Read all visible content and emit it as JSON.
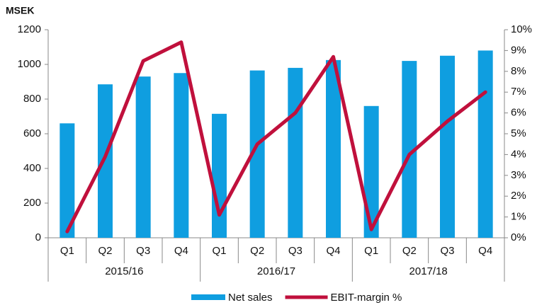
{
  "chart_data": {
    "type": "bar_line",
    "y_label": "MSEK",
    "categories": [
      "Q1",
      "Q2",
      "Q3",
      "Q4",
      "Q1",
      "Q2",
      "Q3",
      "Q4",
      "Q1",
      "Q2",
      "Q3",
      "Q4"
    ],
    "groups": [
      "2015/16",
      "2016/17",
      "2017/18"
    ],
    "series": [
      {
        "name": "Net sales",
        "type": "bar",
        "color": "#0f9ee0",
        "values": [
          660,
          885,
          930,
          950,
          715,
          965,
          980,
          1025,
          760,
          1020,
          1050,
          1080
        ]
      },
      {
        "name": "EBIT-margin %",
        "type": "line",
        "axis": "y2",
        "color": "#c0103c",
        "values": [
          0.3,
          3.9,
          8.5,
          9.4,
          1.1,
          4.5,
          6.0,
          8.7,
          0.4,
          4.0,
          5.6,
          7.0
        ]
      }
    ],
    "ylim": [
      0,
      1200
    ],
    "yticks": [
      0,
      200,
      400,
      600,
      800,
      1000,
      1200
    ],
    "y2lim": [
      0,
      10
    ],
    "y2ticks": [
      {
        "value": 0,
        "label": "0%"
      },
      {
        "value": 1,
        "label": "1%"
      },
      {
        "value": 2,
        "label": "2%"
      },
      {
        "value": 3,
        "label": "3%"
      },
      {
        "value": 4,
        "label": "4%"
      },
      {
        "value": 5,
        "label": "5%"
      },
      {
        "value": 6,
        "label": "6%"
      },
      {
        "value": 7,
        "label": "7%"
      },
      {
        "value": 8,
        "label": "8%"
      },
      {
        "value": 9,
        "label": "9%"
      },
      {
        "value": 10,
        "label": "10%"
      }
    ],
    "legend": "bottom"
  }
}
